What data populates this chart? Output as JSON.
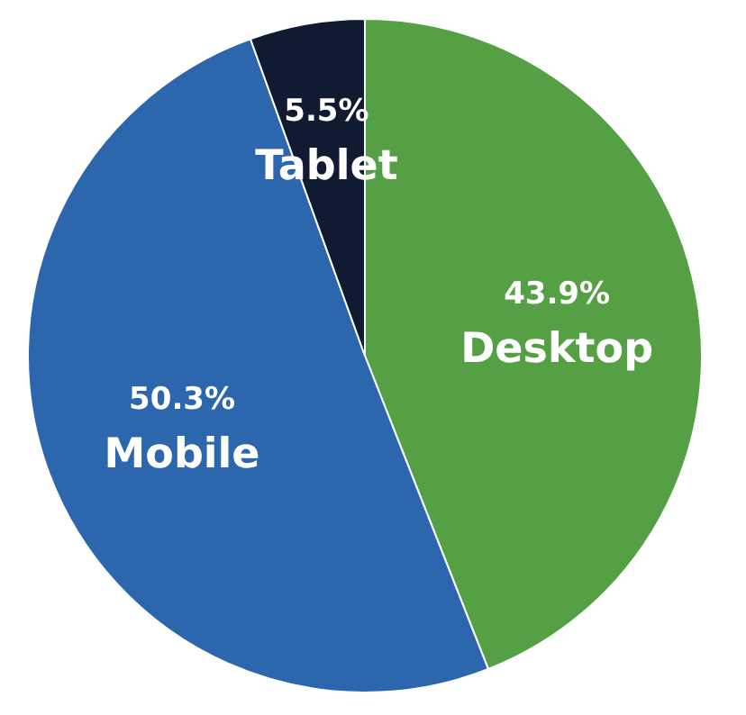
{
  "chart_data": {
    "type": "pie",
    "categories": [
      "Desktop",
      "Mobile",
      "Tablet"
    ],
    "values": [
      43.9,
      50.3,
      5.5
    ],
    "colors": [
      "#55a045",
      "#2c66ad",
      "#101b31"
    ],
    "value_labels": [
      "43.9%",
      "50.3%",
      "5.5%"
    ],
    "legend": false
  }
}
